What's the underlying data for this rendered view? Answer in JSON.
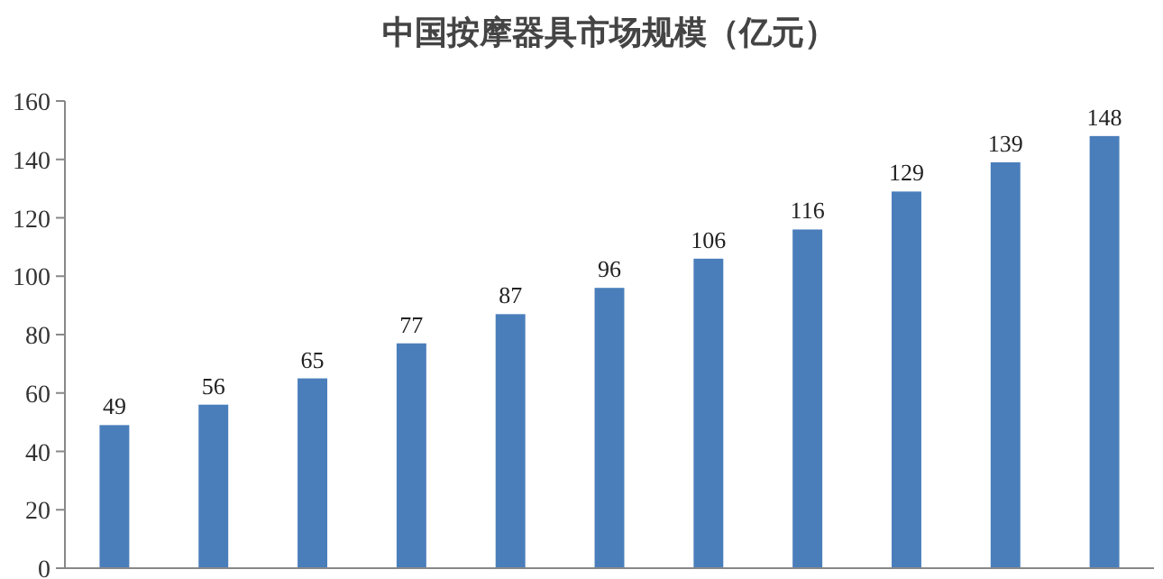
{
  "chart_data": {
    "type": "bar",
    "title": "中国按摩器具市场规模（亿元）",
    "categories": [
      null,
      null,
      null,
      null,
      null,
      null,
      null,
      null,
      null,
      null,
      null
    ],
    "values": [
      49,
      56,
      65,
      77,
      87,
      96,
      106,
      116,
      129,
      139,
      148
    ],
    "color": "#4a7ebb",
    "data_labels": true,
    "grid": false,
    "ylim": [
      0,
      160
    ],
    "yticks": [
      0,
      20,
      40,
      60,
      80,
      100,
      120,
      140,
      160
    ],
    "tick_labels": "y"
  }
}
